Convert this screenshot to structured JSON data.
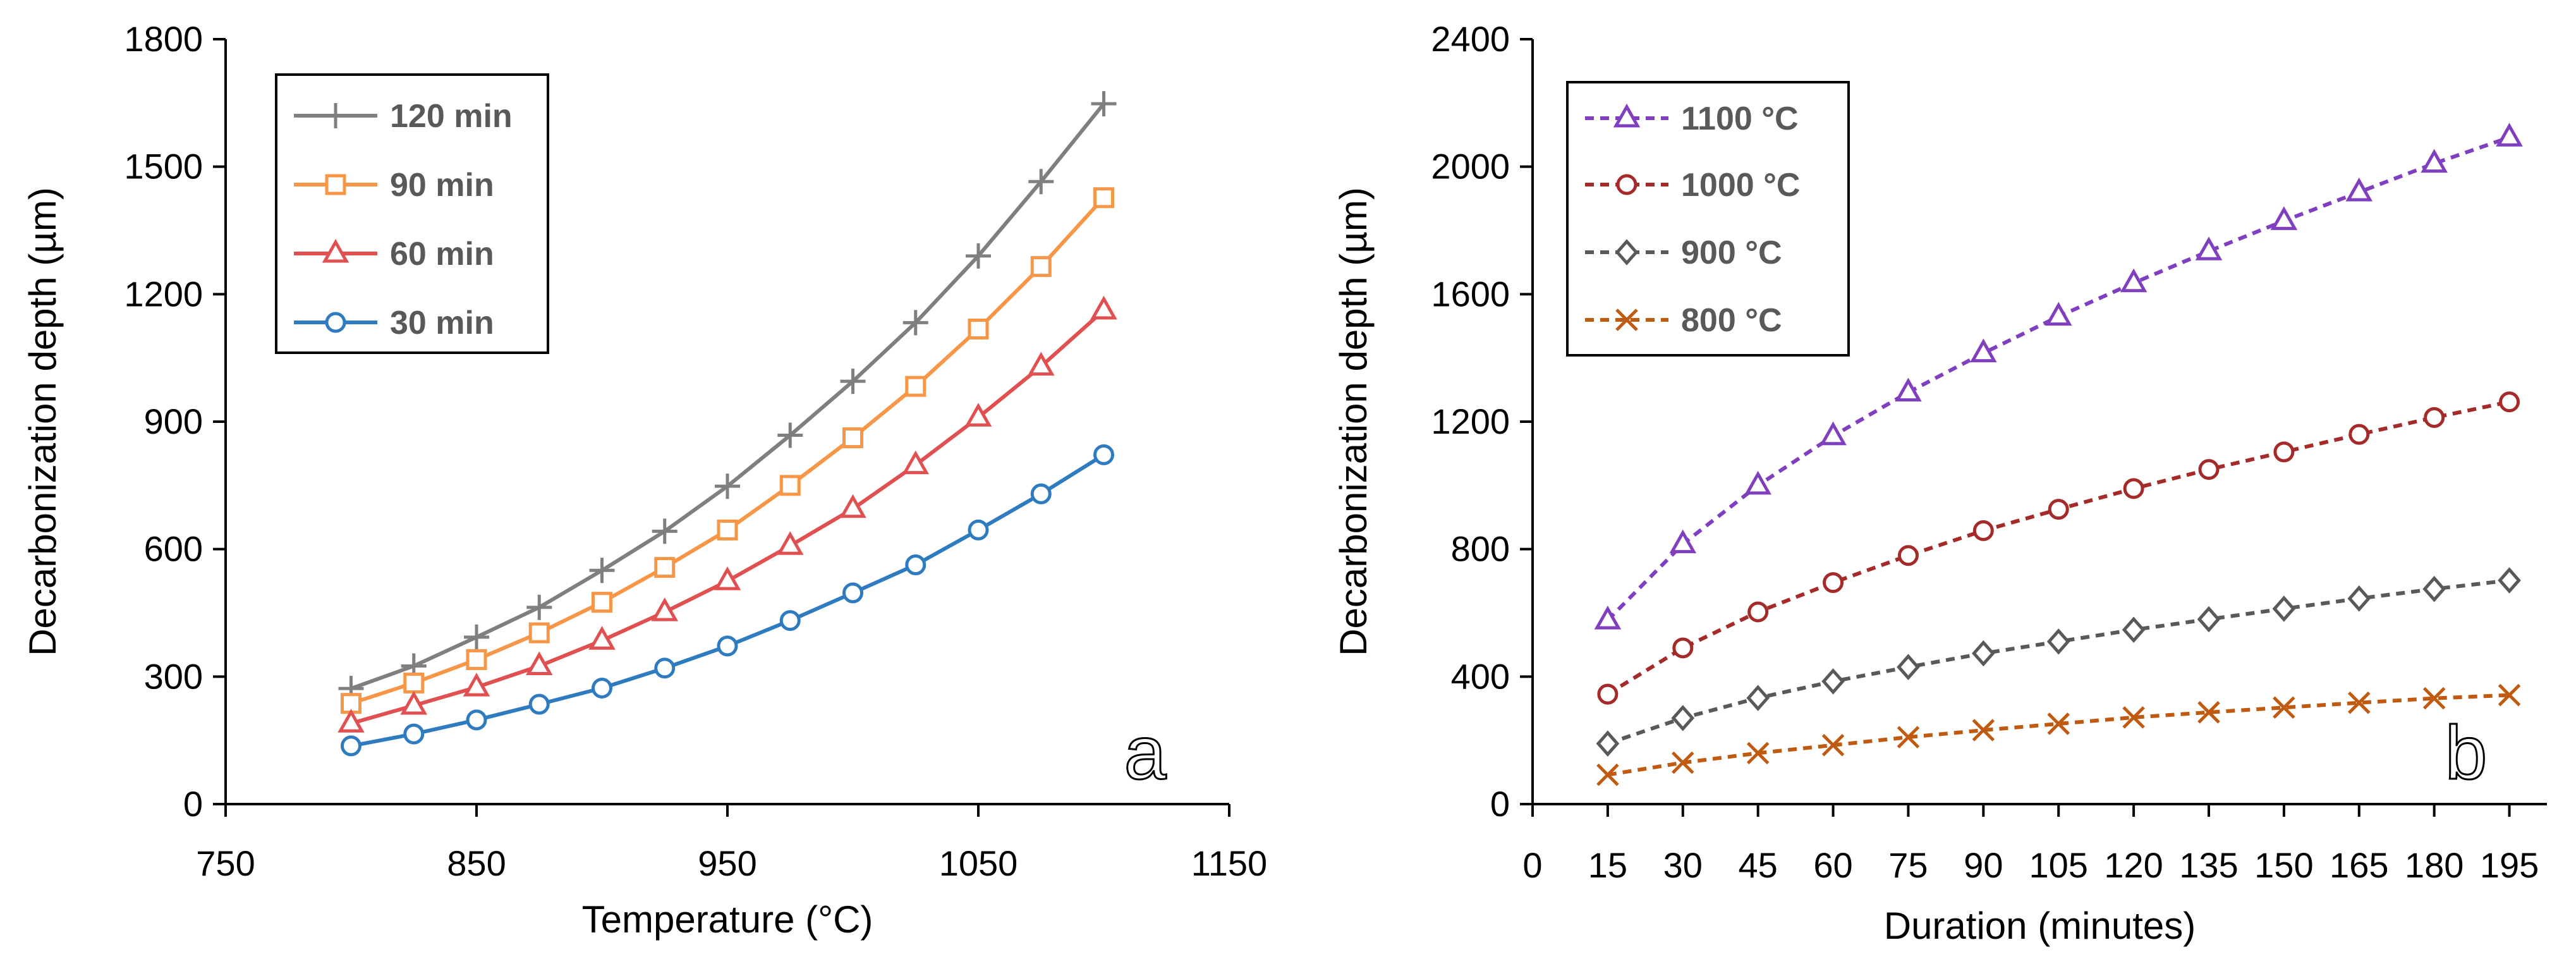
{
  "chart_data": [
    {
      "type": "line",
      "panel_label": "a",
      "xlabel": "Temperature (°C)",
      "ylabel": "Decarbonization depth (µm)",
      "xlim": [
        750,
        1150
      ],
      "ylim": [
        0,
        1800
      ],
      "x_ticks": [
        750,
        850,
        950,
        1050,
        1150
      ],
      "y_ticks": [
        0,
        300,
        600,
        900,
        1200,
        1500,
        1800
      ],
      "grid": false,
      "legend_position": "top-left",
      "x": [
        800,
        825,
        850,
        875,
        900,
        925,
        950,
        975,
        1000,
        1025,
        1050,
        1075,
        1100
      ],
      "series": [
        {
          "name": "120 min",
          "marker": "plus",
          "color": "#7f7f7f",
          "dashed": false,
          "values": [
            272,
            325,
            393,
            463,
            550,
            642,
            748,
            868,
            995,
            1133,
            1290,
            1465,
            1648
          ]
        },
        {
          "name": "90 min",
          "marker": "square",
          "color": "#f79646",
          "dashed": false,
          "values": [
            237,
            285,
            340,
            403,
            475,
            557,
            645,
            750,
            862,
            983,
            1118,
            1265,
            1427
          ]
        },
        {
          "name": "60 min",
          "marker": "triangle",
          "color": "#e05050",
          "dashed": false,
          "values": [
            190,
            232,
            275,
            325,
            385,
            452,
            525,
            608,
            695,
            798,
            910,
            1030,
            1162
          ]
        },
        {
          "name": "30 min",
          "marker": "circle",
          "color": "#2e7cbf",
          "dashed": false,
          "values": [
            137,
            165,
            198,
            235,
            273,
            320,
            372,
            432,
            497,
            563,
            645,
            730,
            822
          ]
        }
      ]
    },
    {
      "type": "line",
      "panel_label": "b",
      "xlabel": "Duration (minutes)",
      "ylabel": "Decarbonization depth (µm)",
      "xlim": [
        0,
        202.5
      ],
      "ylim": [
        0,
        2400
      ],
      "x_ticks": [
        0,
        15,
        30,
        45,
        60,
        75,
        90,
        105,
        120,
        135,
        150,
        165,
        180,
        195
      ],
      "y_ticks": [
        0,
        400,
        800,
        1200,
        1600,
        2000,
        2400
      ],
      "grid": false,
      "legend_position": "top-left",
      "x": [
        15,
        30,
        45,
        60,
        75,
        90,
        105,
        120,
        135,
        150,
        165,
        180,
        195
      ],
      "series": [
        {
          "name": "1100 °C",
          "marker": "triangle",
          "color": "#7f3fbf",
          "dashed": true,
          "values": [
            577,
            816,
            1000,
            1155,
            1292,
            1415,
            1530,
            1635,
            1735,
            1830,
            1920,
            2010,
            2092
          ]
        },
        {
          "name": "1000 °C",
          "marker": "circle",
          "color": "#a52a2a",
          "dashed": true,
          "values": [
            345,
            490,
            603,
            695,
            780,
            858,
            925,
            990,
            1050,
            1105,
            1160,
            1213,
            1262
          ]
        },
        {
          "name": "900 °C",
          "marker": "diamond",
          "color": "#595959",
          "dashed": true,
          "values": [
            190,
            270,
            333,
            385,
            430,
            473,
            510,
            547,
            580,
            613,
            645,
            675,
            702
          ]
        },
        {
          "name": "800 °C",
          "marker": "x",
          "color": "#c05a10",
          "dashed": true,
          "values": [
            92,
            130,
            160,
            185,
            210,
            232,
            252,
            272,
            288,
            303,
            318,
            332,
            342
          ]
        }
      ]
    }
  ]
}
